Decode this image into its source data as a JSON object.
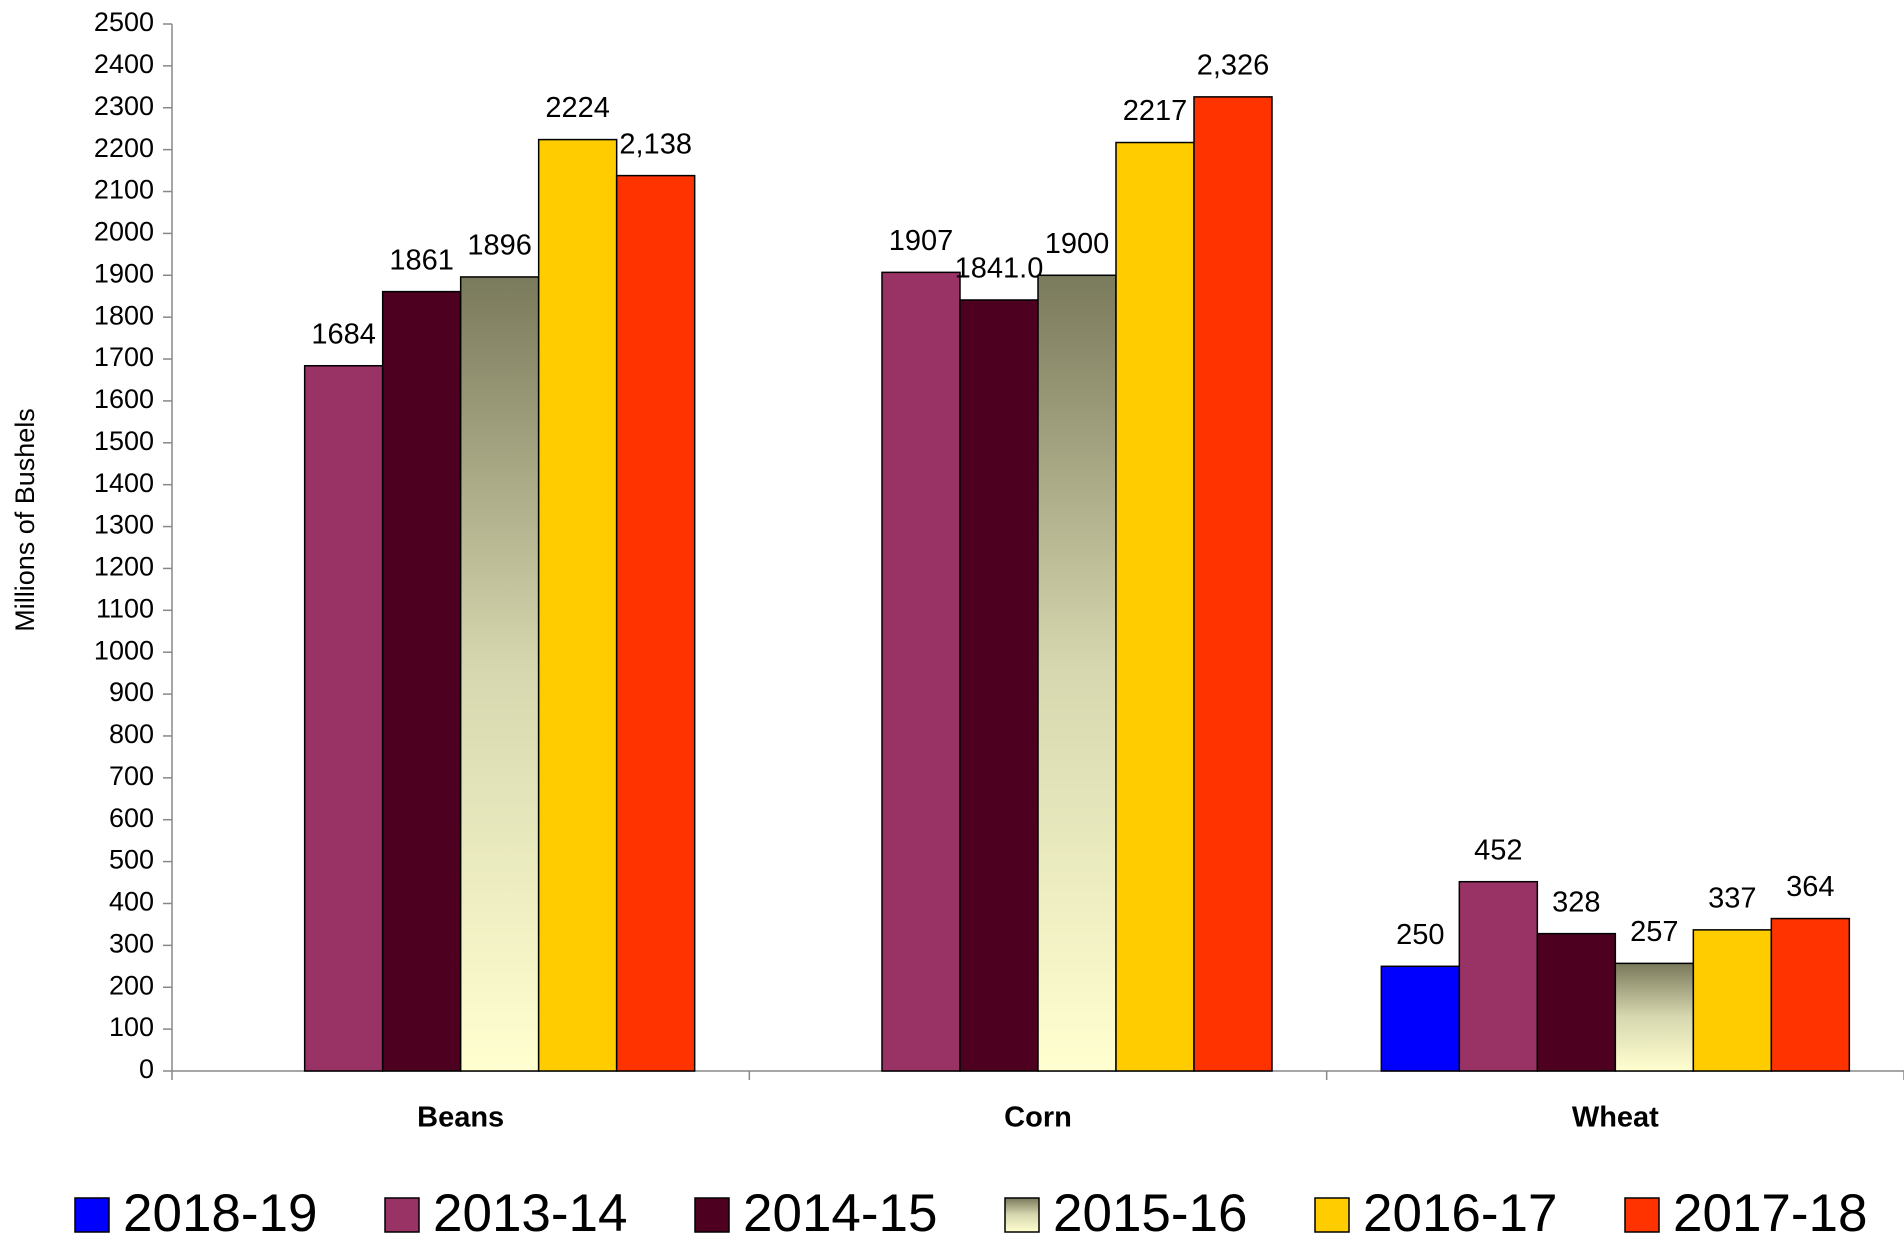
{
  "chart_data": {
    "type": "bar",
    "y_label": "Millions of Bushels",
    "categories": [
      "Beans",
      "Corn",
      "Wheat"
    ],
    "series": [
      {
        "name": "2018-19",
        "color": "#0000ff",
        "values": [
          null,
          null,
          250
        ]
      },
      {
        "name": "2013-14",
        "color": "#993366",
        "values": [
          1684,
          1907,
          452
        ]
      },
      {
        "name": "2014-15",
        "color": "#4d0020",
        "values": [
          1861,
          1841,
          328
        ],
        "value_labels": [
          "1861",
          "1841.0",
          "328"
        ]
      },
      {
        "name": "2015-16",
        "color": "#7a7a5c",
        "gradient": true,
        "values": [
          1896,
          1900,
          257
        ]
      },
      {
        "name": "2016-17",
        "color": "#ffcc00",
        "values": [
          2224,
          2217,
          337
        ]
      },
      {
        "name": "2017-18",
        "color": "#ff3300",
        "values": [
          2138,
          2326,
          364
        ],
        "value_labels": [
          "2,138",
          "2,326",
          "364"
        ]
      }
    ],
    "ylim": [
      0,
      2500
    ],
    "yticks": [
      0,
      100,
      200,
      300,
      400,
      500,
      600,
      700,
      800,
      900,
      1000,
      1100,
      1200,
      1300,
      1400,
      1500,
      1600,
      1700,
      1800,
      1900,
      2000,
      2100,
      2200,
      2300,
      2400,
      2500
    ],
    "grid": false,
    "legend": "bottom"
  }
}
